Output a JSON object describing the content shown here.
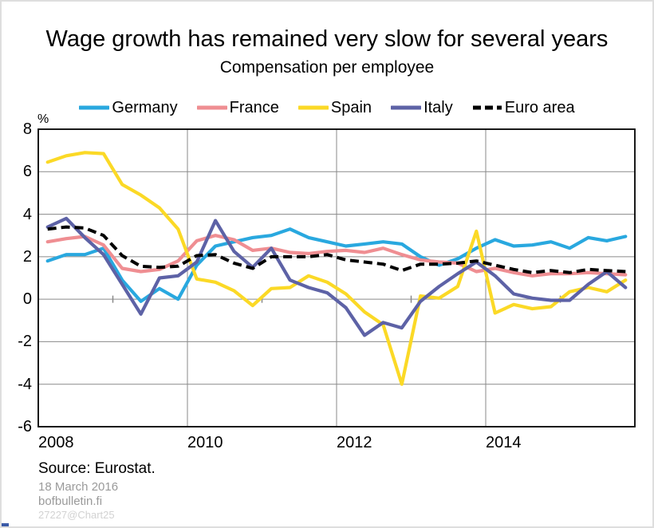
{
  "page": {
    "title": "Wage growth has remained very slow for several years",
    "subtitle": "Compensation per employee",
    "unit_label": "%"
  },
  "footer": {
    "source": "Source: Eurostat.",
    "date": "18 March 2016",
    "site": "bofbulletin.fi",
    "chart_id": "27227@Chart25"
  },
  "colors": {
    "grid": "#8a8a8a",
    "axis": "#000000",
    "background": "#ffffff"
  },
  "chart_data": {
    "type": "line",
    "title": "Wage growth has remained very slow for several years",
    "subtitle": "Compensation per employee",
    "ylabel": "%",
    "ylim": [
      -6,
      8
    ],
    "y_ticks": [
      8,
      6,
      4,
      2,
      0,
      -2,
      -4,
      -6
    ],
    "grid": true,
    "legend_position": "top",
    "x_year_labels": [
      "2008",
      "2010",
      "2012",
      "2014"
    ],
    "x_year_label_indices": [
      0,
      8,
      16,
      24
    ],
    "x_gridline_indices": [
      8,
      16,
      24
    ],
    "x_zero_tick_indices": [
      4,
      12,
      20,
      28
    ],
    "categories": [
      "2008Q1",
      "2008Q2",
      "2008Q3",
      "2008Q4",
      "2009Q1",
      "2009Q2",
      "2009Q3",
      "2009Q4",
      "2010Q1",
      "2010Q2",
      "2010Q3",
      "2010Q4",
      "2011Q1",
      "2011Q2",
      "2011Q3",
      "2011Q4",
      "2012Q1",
      "2012Q2",
      "2012Q3",
      "2012Q4",
      "2013Q1",
      "2013Q2",
      "2013Q3",
      "2013Q4",
      "2014Q1",
      "2014Q2",
      "2014Q3",
      "2014Q4",
      "2015Q1",
      "2015Q2",
      "2015Q3",
      "2015Q4"
    ],
    "series": [
      {
        "name": "Germany",
        "color": "#29a8df",
        "dash": false,
        "values": [
          1.8,
          2.1,
          2.1,
          2.4,
          0.9,
          -0.1,
          0.5,
          0.0,
          1.6,
          2.5,
          2.7,
          2.9,
          3.0,
          3.3,
          2.9,
          2.7,
          2.5,
          2.6,
          2.7,
          2.6,
          2.0,
          1.6,
          1.9,
          2.4,
          2.8,
          2.5,
          2.55,
          2.7,
          2.4,
          2.9,
          2.75,
          2.95
        ]
      },
      {
        "name": "France",
        "color": "#ef8e92",
        "dash": false,
        "values": [
          2.7,
          2.85,
          2.95,
          2.55,
          1.45,
          1.3,
          1.4,
          1.8,
          2.75,
          3.0,
          2.8,
          2.3,
          2.4,
          2.2,
          2.15,
          2.25,
          2.3,
          2.2,
          2.4,
          2.1,
          1.85,
          1.75,
          1.7,
          1.3,
          1.45,
          1.25,
          1.1,
          1.2,
          1.2,
          1.25,
          1.2,
          1.15
        ]
      },
      {
        "name": "Spain",
        "color": "#fbd926",
        "dash": false,
        "values": [
          6.45,
          6.75,
          6.9,
          6.85,
          5.4,
          4.9,
          4.3,
          3.3,
          0.95,
          0.8,
          0.4,
          -0.3,
          0.5,
          0.55,
          1.1,
          0.8,
          0.25,
          -0.6,
          -1.2,
          -4.0,
          0.15,
          0.05,
          0.6,
          3.2,
          -0.65,
          -0.25,
          -0.45,
          -0.35,
          0.35,
          0.55,
          0.35,
          0.9
        ]
      },
      {
        "name": "Italy",
        "color": "#5d62a6",
        "dash": false,
        "values": [
          3.4,
          3.8,
          2.9,
          2.1,
          0.7,
          -0.7,
          1.0,
          1.1,
          1.75,
          3.7,
          2.25,
          1.5,
          2.4,
          0.9,
          0.55,
          0.3,
          -0.4,
          -1.7,
          -1.1,
          -1.35,
          -0.1,
          0.6,
          1.2,
          1.75,
          1.1,
          0.25,
          0.05,
          -0.05,
          -0.05,
          0.7,
          1.3,
          0.55
        ]
      },
      {
        "name": "Euro area",
        "color": "#000000",
        "dash": true,
        "values": [
          3.3,
          3.4,
          3.35,
          3.0,
          2.05,
          1.55,
          1.5,
          1.55,
          2.05,
          2.1,
          1.7,
          1.45,
          2.0,
          2.0,
          2.0,
          2.1,
          1.85,
          1.75,
          1.65,
          1.35,
          1.65,
          1.65,
          1.7,
          1.8,
          1.6,
          1.4,
          1.25,
          1.35,
          1.25,
          1.4,
          1.35,
          1.3
        ]
      }
    ]
  }
}
